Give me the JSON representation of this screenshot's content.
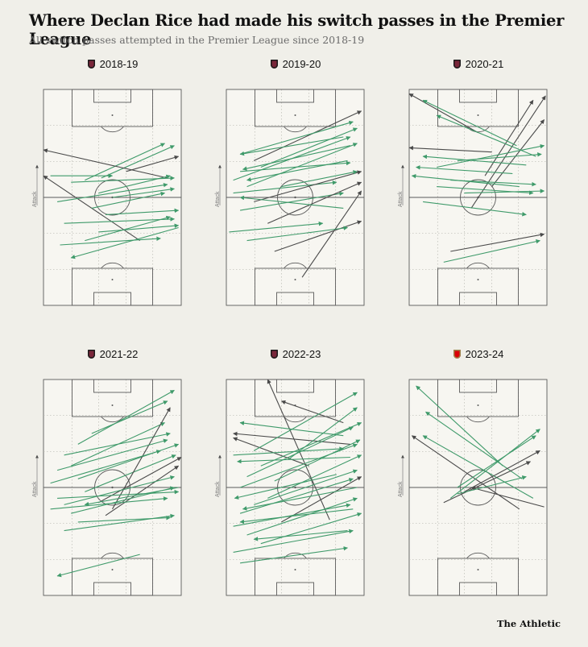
{
  "title": "Where Declan Rice had made his switch passes in the Premier League",
  "subtitle": "All switch passes attempted in the Premier League since 2018-19",
  "brand": "The Athletic",
  "attack_label": "Attack",
  "colors": {
    "background": "#f0efe9",
    "pitch": "#f7f6f1",
    "pitch_lines": "#5a5a5a",
    "successful_pass": "#3f9a6a",
    "unsuccessful_pass": "#4a4a4a"
  },
  "chart_data": [
    {
      "type": "scatter",
      "title": "2018-19",
      "badge": "west-ham-crest",
      "passes": [
        {
          "x1": 0.42,
          "y1": 0.41,
          "x2": 0.95,
          "y2": 0.26,
          "ok": true
        },
        {
          "x1": 0.3,
          "y1": 0.42,
          "x2": 0.88,
          "y2": 0.25,
          "ok": true
        },
        {
          "x1": 0.6,
          "y1": 0.38,
          "x2": 0.98,
          "y2": 0.31,
          "ok": false
        },
        {
          "x1": 0.7,
          "y1": 0.7,
          "x2": 0.0,
          "y2": 0.4,
          "ok": false
        },
        {
          "x1": 0.9,
          "y1": 0.41,
          "x2": 0.0,
          "y2": 0.28,
          "ok": false
        },
        {
          "x1": 0.2,
          "y1": 0.43,
          "x2": 0.95,
          "y2": 0.41,
          "ok": true
        },
        {
          "x1": 0.4,
          "y1": 0.48,
          "x2": 0.92,
          "y2": 0.4,
          "ok": true
        },
        {
          "x1": 0.1,
          "y1": 0.52,
          "x2": 0.9,
          "y2": 0.44,
          "ok": true
        },
        {
          "x1": 0.05,
          "y1": 0.4,
          "x2": 0.5,
          "y2": 0.4,
          "ok": true
        },
        {
          "x1": 0.35,
          "y1": 0.55,
          "x2": 0.88,
          "y2": 0.48,
          "ok": true
        },
        {
          "x1": 0.45,
          "y1": 0.58,
          "x2": 0.98,
          "y2": 0.56,
          "ok": true
        },
        {
          "x1": 0.15,
          "y1": 0.62,
          "x2": 0.95,
          "y2": 0.6,
          "ok": true
        },
        {
          "x1": 0.3,
          "y1": 0.7,
          "x2": 0.92,
          "y2": 0.59,
          "ok": true
        },
        {
          "x1": 0.4,
          "y1": 0.66,
          "x2": 0.98,
          "y2": 0.63,
          "ok": true
        },
        {
          "x1": 0.12,
          "y1": 0.72,
          "x2": 0.85,
          "y2": 0.69,
          "ok": true
        },
        {
          "x1": 0.98,
          "y1": 0.64,
          "x2": 0.2,
          "y2": 0.78,
          "ok": true
        },
        {
          "x1": 0.5,
          "y1": 0.5,
          "x2": 0.95,
          "y2": 0.46,
          "ok": true
        }
      ]
    },
    {
      "type": "scatter",
      "title": "2019-20",
      "badge": "west-ham-crest",
      "passes": [
        {
          "x1": 0.2,
          "y1": 0.33,
          "x2": 0.98,
          "y2": 0.1,
          "ok": false
        },
        {
          "x1": 0.1,
          "y1": 0.3,
          "x2": 0.92,
          "y2": 0.15,
          "ok": true
        },
        {
          "x1": 0.25,
          "y1": 0.36,
          "x2": 0.95,
          "y2": 0.18,
          "ok": true
        },
        {
          "x1": 0.05,
          "y1": 0.42,
          "x2": 0.9,
          "y2": 0.22,
          "ok": true
        },
        {
          "x1": 0.15,
          "y1": 0.45,
          "x2": 0.95,
          "y2": 0.25,
          "ok": true
        },
        {
          "x1": 0.85,
          "y1": 0.22,
          "x2": 0.1,
          "y2": 0.3,
          "ok": true
        },
        {
          "x1": 0.9,
          "y1": 0.26,
          "x2": 0.12,
          "y2": 0.37,
          "ok": true
        },
        {
          "x1": 0.88,
          "y1": 0.33,
          "x2": 0.15,
          "y2": 0.42,
          "ok": true
        },
        {
          "x1": 0.1,
          "y1": 0.38,
          "x2": 0.9,
          "y2": 0.34,
          "ok": true
        },
        {
          "x1": 0.05,
          "y1": 0.48,
          "x2": 0.8,
          "y2": 0.43,
          "ok": true
        },
        {
          "x1": 0.2,
          "y1": 0.52,
          "x2": 0.98,
          "y2": 0.38,
          "ok": false
        },
        {
          "x1": 0.1,
          "y1": 0.56,
          "x2": 0.85,
          "y2": 0.48,
          "ok": true
        },
        {
          "x1": 0.3,
          "y1": 0.62,
          "x2": 0.98,
          "y2": 0.43,
          "ok": false
        },
        {
          "x1": 0.02,
          "y1": 0.66,
          "x2": 0.7,
          "y2": 0.62,
          "ok": true
        },
        {
          "x1": 0.85,
          "y1": 0.55,
          "x2": 0.1,
          "y2": 0.5,
          "ok": true
        },
        {
          "x1": 0.55,
          "y1": 0.87,
          "x2": 0.98,
          "y2": 0.47,
          "ok": false
        },
        {
          "x1": 0.35,
          "y1": 0.75,
          "x2": 0.98,
          "y2": 0.61,
          "ok": false
        },
        {
          "x1": 0.15,
          "y1": 0.7,
          "x2": 0.88,
          "y2": 0.64,
          "ok": true
        },
        {
          "x1": 0.4,
          "y1": 0.45,
          "x2": 0.95,
          "y2": 0.38,
          "ok": true
        }
      ]
    },
    {
      "type": "scatter",
      "title": "2020-21",
      "badge": "west-ham-crest",
      "passes": [
        {
          "x1": 0.5,
          "y1": 0.2,
          "x2": 0.0,
          "y2": 0.02,
          "ok": false
        },
        {
          "x1": 0.55,
          "y1": 0.4,
          "x2": 0.9,
          "y2": 0.05,
          "ok": false
        },
        {
          "x1": 0.6,
          "y1": 0.45,
          "x2": 0.98,
          "y2": 0.14,
          "ok": false
        },
        {
          "x1": 0.45,
          "y1": 0.55,
          "x2": 0.99,
          "y2": 0.03,
          "ok": false
        },
        {
          "x1": 0.78,
          "y1": 0.26,
          "x2": 0.1,
          "y2": 0.05,
          "ok": true
        },
        {
          "x1": 0.92,
          "y1": 0.31,
          "x2": 0.2,
          "y2": 0.12,
          "ok": true
        },
        {
          "x1": 0.2,
          "y1": 0.36,
          "x2": 0.98,
          "y2": 0.26,
          "ok": true
        },
        {
          "x1": 0.85,
          "y1": 0.35,
          "x2": 0.1,
          "y2": 0.31,
          "ok": true
        },
        {
          "x1": 0.75,
          "y1": 0.39,
          "x2": 0.05,
          "y2": 0.36,
          "ok": true
        },
        {
          "x1": 0.8,
          "y1": 0.45,
          "x2": 0.02,
          "y2": 0.4,
          "ok": true
        },
        {
          "x1": 0.6,
          "y1": 0.29,
          "x2": 0.0,
          "y2": 0.27,
          "ok": false
        },
        {
          "x1": 0.3,
          "y1": 0.42,
          "x2": 0.92,
          "y2": 0.44,
          "ok": true
        },
        {
          "x1": 0.1,
          "y1": 0.52,
          "x2": 0.85,
          "y2": 0.58,
          "ok": true
        },
        {
          "x1": 0.2,
          "y1": 0.45,
          "x2": 0.9,
          "y2": 0.48,
          "ok": true
        },
        {
          "x1": 0.3,
          "y1": 0.75,
          "x2": 0.98,
          "y2": 0.67,
          "ok": false
        },
        {
          "x1": 0.25,
          "y1": 0.8,
          "x2": 0.95,
          "y2": 0.7,
          "ok": true
        },
        {
          "x1": 0.35,
          "y1": 0.33,
          "x2": 0.96,
          "y2": 0.3,
          "ok": true
        },
        {
          "x1": 0.4,
          "y1": 0.48,
          "x2": 0.98,
          "y2": 0.47,
          "ok": true
        }
      ]
    },
    {
      "type": "scatter",
      "title": "2021-22",
      "badge": "west-ham-crest",
      "passes": [
        {
          "x1": 0.25,
          "y1": 0.3,
          "x2": 0.95,
          "y2": 0.05,
          "ok": true
        },
        {
          "x1": 0.35,
          "y1": 0.25,
          "x2": 0.9,
          "y2": 0.1,
          "ok": true
        },
        {
          "x1": 0.2,
          "y1": 0.4,
          "x2": 0.88,
          "y2": 0.2,
          "ok": true
        },
        {
          "x1": 0.15,
          "y1": 0.35,
          "x2": 0.92,
          "y2": 0.25,
          "ok": true
        },
        {
          "x1": 0.25,
          "y1": 0.46,
          "x2": 0.98,
          "y2": 0.3,
          "ok": true
        },
        {
          "x1": 0.3,
          "y1": 0.52,
          "x2": 0.96,
          "y2": 0.35,
          "ok": true
        },
        {
          "x1": 0.4,
          "y1": 0.57,
          "x2": 1.0,
          "y2": 0.36,
          "ok": false
        },
        {
          "x1": 0.45,
          "y1": 0.63,
          "x2": 0.98,
          "y2": 0.4,
          "ok": false
        },
        {
          "x1": 0.5,
          "y1": 0.6,
          "x2": 0.92,
          "y2": 0.13,
          "ok": false
        },
        {
          "x1": 0.1,
          "y1": 0.42,
          "x2": 0.9,
          "y2": 0.28,
          "ok": true
        },
        {
          "x1": 0.15,
          "y1": 0.58,
          "x2": 0.95,
          "y2": 0.45,
          "ok": true
        },
        {
          "x1": 0.2,
          "y1": 0.62,
          "x2": 0.95,
          "y2": 0.5,
          "ok": true
        },
        {
          "x1": 0.05,
          "y1": 0.6,
          "x2": 0.9,
          "y2": 0.55,
          "ok": true
        },
        {
          "x1": 0.1,
          "y1": 0.55,
          "x2": 0.98,
          "y2": 0.52,
          "ok": true
        },
        {
          "x1": 0.25,
          "y1": 0.66,
          "x2": 0.92,
          "y2": 0.64,
          "ok": true
        },
        {
          "x1": 0.15,
          "y1": 0.7,
          "x2": 0.95,
          "y2": 0.63,
          "ok": true
        },
        {
          "x1": 0.98,
          "y1": 0.5,
          "x2": 0.3,
          "y2": 0.58,
          "ok": true
        },
        {
          "x1": 0.7,
          "y1": 0.81,
          "x2": 0.1,
          "y2": 0.91,
          "ok": true
        },
        {
          "x1": 0.05,
          "y1": 0.48,
          "x2": 0.85,
          "y2": 0.33,
          "ok": true
        }
      ]
    },
    {
      "type": "scatter",
      "title": "2022-23",
      "badge": "west-ham-crest",
      "passes": [
        {
          "x1": 0.75,
          "y1": 0.65,
          "x2": 0.3,
          "y2": 0.0,
          "ok": false
        },
        {
          "x1": 0.85,
          "y1": 0.2,
          "x2": 0.4,
          "y2": 0.1,
          "ok": false
        },
        {
          "x1": 0.9,
          "y1": 0.3,
          "x2": 0.05,
          "y2": 0.25,
          "ok": false
        },
        {
          "x1": 0.6,
          "y1": 0.4,
          "x2": 0.05,
          "y2": 0.27,
          "ok": false
        },
        {
          "x1": 0.2,
          "y1": 0.33,
          "x2": 0.95,
          "y2": 0.06,
          "ok": true
        },
        {
          "x1": 0.25,
          "y1": 0.4,
          "x2": 0.98,
          "y2": 0.2,
          "ok": true
        },
        {
          "x1": 0.15,
          "y1": 0.45,
          "x2": 0.92,
          "y2": 0.22,
          "ok": true
        },
        {
          "x1": 0.1,
          "y1": 0.5,
          "x2": 0.95,
          "y2": 0.3,
          "ok": true
        },
        {
          "x1": 0.05,
          "y1": 0.35,
          "x2": 0.85,
          "y2": 0.32,
          "ok": true
        },
        {
          "x1": 0.85,
          "y1": 0.26,
          "x2": 0.1,
          "y2": 0.2,
          "ok": true
        },
        {
          "x1": 0.9,
          "y1": 0.36,
          "x2": 0.08,
          "y2": 0.38,
          "ok": true
        },
        {
          "x1": 0.3,
          "y1": 0.55,
          "x2": 0.98,
          "y2": 0.35,
          "ok": true
        },
        {
          "x1": 0.2,
          "y1": 0.58,
          "x2": 0.95,
          "y2": 0.42,
          "ok": true
        },
        {
          "x1": 0.1,
          "y1": 0.62,
          "x2": 0.92,
          "y2": 0.46,
          "ok": true
        },
        {
          "x1": 0.4,
          "y1": 0.66,
          "x2": 0.98,
          "y2": 0.45,
          "ok": false
        },
        {
          "x1": 0.05,
          "y1": 0.68,
          "x2": 0.9,
          "y2": 0.58,
          "ok": true
        },
        {
          "x1": 0.15,
          "y1": 0.72,
          "x2": 0.95,
          "y2": 0.55,
          "ok": true
        },
        {
          "x1": 0.25,
          "y1": 0.76,
          "x2": 0.98,
          "y2": 0.62,
          "ok": true
        },
        {
          "x1": 0.05,
          "y1": 0.8,
          "x2": 0.92,
          "y2": 0.7,
          "ok": true
        },
        {
          "x1": 0.1,
          "y1": 0.85,
          "x2": 0.88,
          "y2": 0.78,
          "ok": true
        },
        {
          "x1": 0.95,
          "y1": 0.5,
          "x2": 0.12,
          "y2": 0.6,
          "ok": true
        },
        {
          "x1": 0.92,
          "y1": 0.6,
          "x2": 0.1,
          "y2": 0.66,
          "ok": true
        },
        {
          "x1": 0.88,
          "y1": 0.7,
          "x2": 0.2,
          "y2": 0.74,
          "ok": true
        },
        {
          "x1": 0.8,
          "y1": 0.44,
          "x2": 0.06,
          "y2": 0.55,
          "ok": true
        },
        {
          "x1": 0.35,
          "y1": 0.47,
          "x2": 0.97,
          "y2": 0.28,
          "ok": true
        },
        {
          "x1": 0.45,
          "y1": 0.37,
          "x2": 0.95,
          "y2": 0.13,
          "ok": true
        }
      ]
    },
    {
      "type": "scatter",
      "title": "2023-24",
      "badge": "arsenal-crest",
      "passes": [
        {
          "x1": 0.68,
          "y1": 0.4,
          "x2": 0.05,
          "y2": 0.03,
          "ok": true
        },
        {
          "x1": 0.82,
          "y1": 0.46,
          "x2": 0.12,
          "y2": 0.15,
          "ok": true
        },
        {
          "x1": 0.9,
          "y1": 0.55,
          "x2": 0.1,
          "y2": 0.26,
          "ok": true
        },
        {
          "x1": 0.8,
          "y1": 0.6,
          "x2": 0.02,
          "y2": 0.26,
          "ok": false
        },
        {
          "x1": 0.98,
          "y1": 0.59,
          "x2": 0.45,
          "y2": 0.5,
          "ok": false
        },
        {
          "x1": 0.3,
          "y1": 0.55,
          "x2": 0.95,
          "y2": 0.23,
          "ok": true
        },
        {
          "x1": 0.35,
          "y1": 0.5,
          "x2": 0.92,
          "y2": 0.26,
          "ok": true
        },
        {
          "x1": 0.4,
          "y1": 0.52,
          "x2": 0.95,
          "y2": 0.33,
          "ok": false
        },
        {
          "x1": 0.25,
          "y1": 0.57,
          "x2": 0.88,
          "y2": 0.38,
          "ok": false
        },
        {
          "x1": 0.35,
          "y1": 0.53,
          "x2": 0.85,
          "y2": 0.45,
          "ok": true
        }
      ]
    }
  ]
}
